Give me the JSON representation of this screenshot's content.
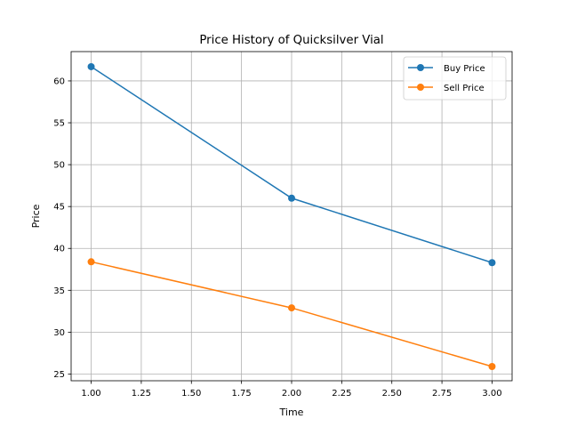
{
  "chart_data": {
    "type": "line",
    "title": "Price History of Quicksilver Vial",
    "xlabel": "Time",
    "ylabel": "Price",
    "x": [
      1.0,
      2.0,
      3.0
    ],
    "xlim": [
      0.9,
      3.1
    ],
    "ylim": [
      24.2,
      63.5
    ],
    "xticks": [
      "1.00",
      "1.25",
      "1.50",
      "1.75",
      "2.00",
      "2.25",
      "2.50",
      "2.75",
      "3.00"
    ],
    "yticks": [
      "25",
      "30",
      "35",
      "40",
      "45",
      "50",
      "55",
      "60"
    ],
    "grid": true,
    "legend_position": "top-right",
    "series": [
      {
        "name": "Buy Price",
        "values": [
          61.7,
          46.0,
          38.3
        ],
        "color": "#1f77b4",
        "marker": "circle"
      },
      {
        "name": "Sell Price",
        "values": [
          38.4,
          32.9,
          25.9
        ],
        "color": "#ff7f0e",
        "marker": "circle"
      }
    ]
  }
}
